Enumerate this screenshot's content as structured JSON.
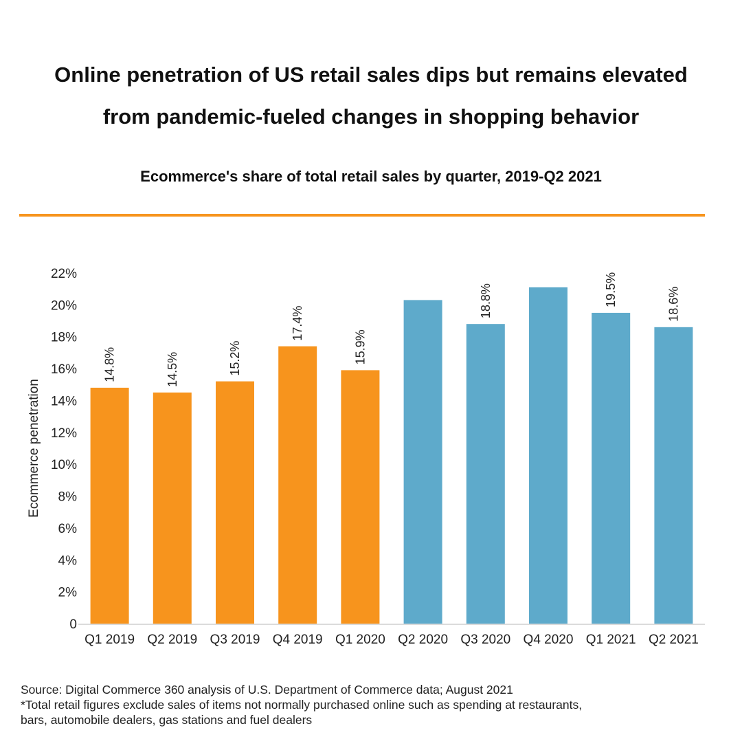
{
  "header": {
    "title_line1": "Online penetration of US retail sales dips but remains elevated",
    "title_line2": "from pandemic-fueled changes in shopping behavior",
    "subtitle": "Ecommerce's share of total retail sales by quarter, 2019-Q2 2021"
  },
  "colors": {
    "accent": "#f7941d",
    "pre_pandemic_bar": "#f7941d",
    "pandemic_bar": "#5eaacb",
    "axis": "#cfcfcf",
    "text": "#222222"
  },
  "chart_data": {
    "type": "bar",
    "title": "Ecommerce's share of total retail sales by quarter, 2019-Q2 2021",
    "xlabel": "",
    "ylabel": "Ecommerce penetration",
    "ylim": [
      0,
      22
    ],
    "yticks": [
      0,
      2,
      4,
      6,
      8,
      10,
      12,
      14,
      16,
      18,
      20,
      22
    ],
    "ytick_labels": [
      "0",
      "2%",
      "4%",
      "6%",
      "8%",
      "10%",
      "12%",
      "14%",
      "16%",
      "18%",
      "20%",
      "22%"
    ],
    "grid": false,
    "categories": [
      "Q1 2019",
      "Q2 2019",
      "Q3 2019",
      "Q4 2019",
      "Q1 2020",
      "Q2 2020",
      "Q3 2020",
      "Q4 2020",
      "Q1 2021",
      "Q2 2021"
    ],
    "values": [
      14.8,
      14.5,
      15.2,
      17.4,
      15.9,
      20.3,
      18.8,
      21.1,
      19.5,
      18.6
    ],
    "data_labels": [
      "14.8%",
      "14.5%",
      "15.2%",
      "17.4%",
      "15.9%",
      "",
      "18.8%",
      "",
      "19.5%",
      "18.6%"
    ],
    "bar_colors": [
      "pre_pandemic_bar",
      "pre_pandemic_bar",
      "pre_pandemic_bar",
      "pre_pandemic_bar",
      "pre_pandemic_bar",
      "pandemic_bar",
      "pandemic_bar",
      "pandemic_bar",
      "pandemic_bar",
      "pandemic_bar"
    ]
  },
  "footer": {
    "source": "Source: Digital Commerce 360 analysis of U.S. Department of Commerce data; August 2021",
    "note_line1": "*Total retail figures exclude sales of items not normally purchased online such as spending at restaurants,",
    "note_line2": "bars, automobile dealers, gas stations and fuel dealers"
  }
}
